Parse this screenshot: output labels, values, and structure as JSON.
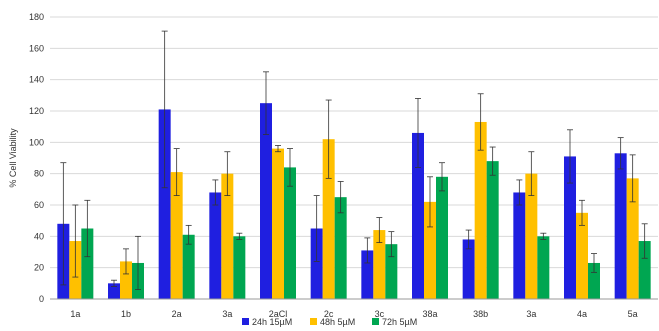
{
  "chart_data": {
    "type": "bar",
    "title": "",
    "xlabel": "",
    "ylabel": "% Cell Viability",
    "ylim": [
      0,
      180
    ],
    "yticks": [
      0,
      20,
      40,
      60,
      80,
      100,
      120,
      140,
      160,
      180
    ],
    "grid": true,
    "legend_position": "bottom",
    "categories": [
      "1a",
      "1b",
      "2a",
      "3a",
      "2aCl",
      "2c",
      "3c",
      "38a",
      "38b",
      "3a",
      "4a",
      "5a"
    ],
    "series": [
      {
        "name": "24h 15µM",
        "color": "#1f1fe0",
        "values": [
          48,
          10,
          121,
          68,
          125,
          45,
          31,
          106,
          38,
          68,
          91,
          93
        ],
        "errors": [
          39,
          2,
          50,
          8,
          20,
          21,
          8,
          22,
          6,
          8,
          17,
          10
        ]
      },
      {
        "name": "48h 5µM",
        "color": "#ffc000",
        "values": [
          37,
          24,
          81,
          80,
          96,
          102,
          44,
          62,
          113,
          80,
          55,
          77
        ],
        "errors": [
          23,
          8,
          15,
          14,
          2,
          25,
          8,
          16,
          18,
          14,
          8,
          15
        ]
      },
      {
        "name": "72h 5µM",
        "color": "#00a651",
        "values": [
          45,
          23,
          41,
          40,
          84,
          65,
          35,
          78,
          88,
          40,
          23,
          37
        ],
        "errors": [
          18,
          17,
          6,
          2,
          12,
          10,
          8,
          9,
          9,
          2,
          6,
          11
        ]
      }
    ]
  }
}
